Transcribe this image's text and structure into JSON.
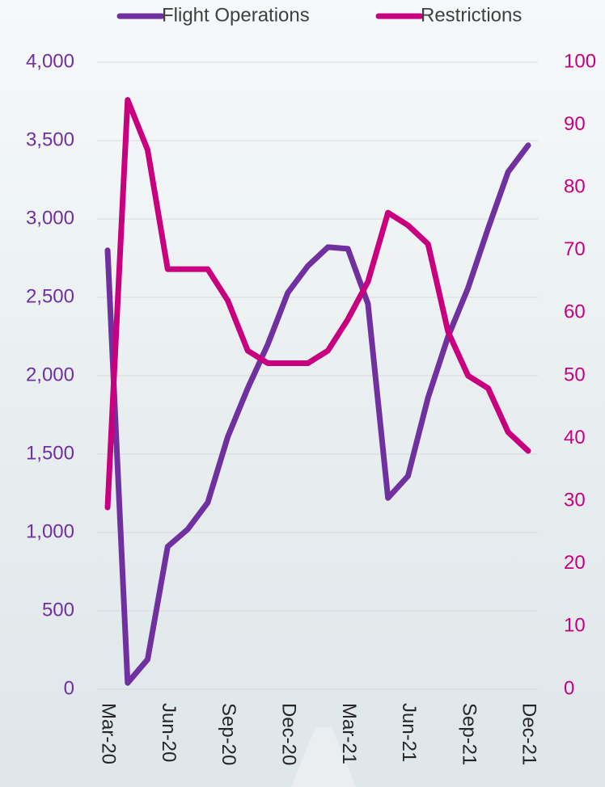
{
  "chart_data": {
    "type": "line",
    "categories": [
      "Mar-20",
      null,
      null,
      "Jun-20",
      null,
      null,
      "Sep-20",
      null,
      null,
      "Dec-20",
      null,
      null,
      "Mar-21",
      null,
      null,
      "Jun-21",
      null,
      null,
      "Sep-21",
      null,
      null,
      "Dec-21"
    ],
    "series": [
      {
        "name": "Flight Operations",
        "color": "#7030a0",
        "values": [
          2800,
          40,
          190,
          910,
          1020,
          1190,
          1610,
          1920,
          2200,
          2530,
          2700,
          2820,
          2810,
          2460,
          1220,
          1360,
          1860,
          2250,
          2560,
          2940,
          3300,
          3470
        ]
      },
      {
        "name": "Restrictions",
        "color": "#c8007f",
        "axis": "y2",
        "values": [
          29,
          94,
          86,
          67,
          67,
          67,
          62,
          54,
          52,
          52,
          52,
          54,
          59,
          65,
          76,
          74,
          71,
          57,
          50,
          48,
          41,
          38
        ]
      }
    ],
    "ylim": [
      0,
      4000
    ],
    "yticks": [
      0,
      500,
      {
        "value": 1000,
        "label": "1,000"
      },
      {
        "value": 1500,
        "label": "1,500"
      },
      {
        "value": 2000,
        "label": "2,000"
      },
      {
        "value": 2500,
        "label": "2,500"
      },
      {
        "value": 3000,
        "label": "3,000"
      },
      {
        "value": 3500,
        "label": "3,500"
      },
      {
        "value": 4000,
        "label": "4,000"
      }
    ],
    "y2lim": [
      0,
      100
    ],
    "y2ticks": [
      0,
      10,
      20,
      30,
      40,
      50,
      60,
      70,
      80,
      90,
      100
    ],
    "grid": true,
    "legend": "top"
  }
}
